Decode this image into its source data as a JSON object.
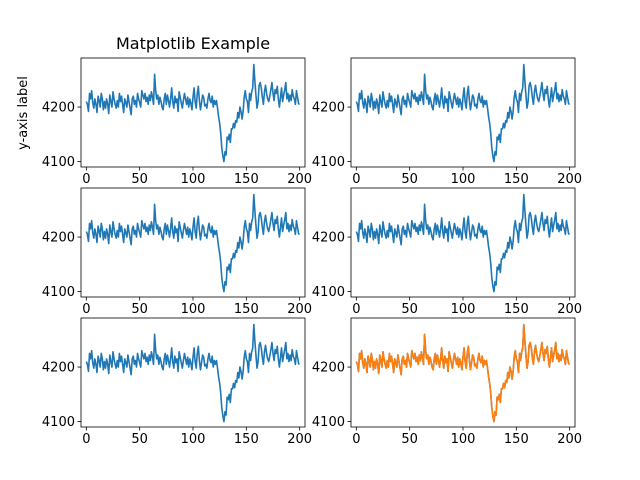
{
  "figure": {
    "title": "Matplotlib Example",
    "ylabel": "y-axis label"
  },
  "colors": {
    "blue": "#1f77b4",
    "orange": "#ff7f0e",
    "axis": "#000000",
    "background": "#ffffff"
  },
  "chart_data": [
    {
      "type": "line",
      "row": 0,
      "col": 0,
      "title": "Matplotlib Example",
      "ylabel": "y-axis label",
      "xlim": [
        -5,
        205
      ],
      "ylim": [
        4090,
        4290
      ],
      "xticks": [
        0,
        50,
        100,
        150,
        200
      ],
      "yticks": [
        4100,
        4200
      ],
      "grid": false,
      "series": [
        {
          "color": "#1f77b4",
          "ref": "signal"
        }
      ]
    },
    {
      "type": "line",
      "row": 0,
      "col": 1,
      "title": "",
      "ylabel": "",
      "xlim": [
        -5,
        205
      ],
      "ylim": [
        4090,
        4290
      ],
      "xticks": [
        0,
        50,
        100,
        150,
        200
      ],
      "yticks": [
        4100,
        4200
      ],
      "grid": false,
      "series": [
        {
          "color": "#1f77b4",
          "ref": "signal"
        }
      ]
    },
    {
      "type": "line",
      "row": 1,
      "col": 0,
      "title": "",
      "ylabel": "",
      "xlim": [
        -5,
        205
      ],
      "ylim": [
        4090,
        4290
      ],
      "xticks": [
        0,
        50,
        100,
        150,
        200
      ],
      "yticks": [
        4100,
        4200
      ],
      "grid": false,
      "series": [
        {
          "color": "#1f77b4",
          "ref": "signal"
        }
      ]
    },
    {
      "type": "line",
      "row": 1,
      "col": 1,
      "title": "",
      "ylabel": "",
      "xlim": [
        -5,
        205
      ],
      "ylim": [
        4090,
        4290
      ],
      "xticks": [
        0,
        50,
        100,
        150,
        200
      ],
      "yticks": [
        4100,
        4200
      ],
      "grid": false,
      "series": [
        {
          "color": "#1f77b4",
          "ref": "signal"
        }
      ]
    },
    {
      "type": "line",
      "row": 2,
      "col": 0,
      "title": "",
      "ylabel": "",
      "xlim": [
        -5,
        205
      ],
      "ylim": [
        4090,
        4290
      ],
      "xticks": [
        0,
        50,
        100,
        150,
        200
      ],
      "yticks": [
        4100,
        4200
      ],
      "grid": false,
      "series": [
        {
          "color": "#1f77b4",
          "ref": "signal"
        }
      ]
    },
    {
      "type": "line",
      "row": 2,
      "col": 1,
      "title": "",
      "ylabel": "",
      "xlim": [
        -5,
        205
      ],
      "ylim": [
        4090,
        4290
      ],
      "xticks": [
        0,
        50,
        100,
        150,
        200
      ],
      "yticks": [
        4100,
        4200
      ],
      "grid": false,
      "series": [
        {
          "color": "#1f77b4",
          "ref": "signal"
        },
        {
          "color": "#ff7f0e",
          "ref": "signal"
        }
      ]
    }
  ],
  "signal": {
    "x_start": 0,
    "x_step": 1,
    "y": [
      4210,
      4205,
      4192,
      4225,
      4215,
      4230,
      4208,
      4198,
      4215,
      4205,
      4190,
      4220,
      4212,
      4200,
      4225,
      4215,
      4195,
      4210,
      4198,
      4215,
      4205,
      4188,
      4222,
      4210,
      4200,
      4228,
      4215,
      4205,
      4198,
      4212,
      4200,
      4225,
      4210,
      4220,
      4205,
      4190,
      4215,
      4208,
      4200,
      4222,
      4210,
      4198,
      4186,
      4215,
      4220,
      4205,
      4212,
      4200,
      4225,
      4215,
      4208,
      4200,
      4230,
      4222,
      4215,
      4225,
      4210,
      4218,
      4205,
      4222,
      4212,
      4228,
      4218,
      4205,
      4260,
      4230,
      4215,
      4222,
      4205,
      4218,
      4210,
      4200,
      4195,
      4215,
      4225,
      4205,
      4222,
      4212,
      4200,
      4215,
      4235,
      4210,
      4198,
      4220,
      4208,
      4215,
      4192,
      4228,
      4218,
      4208,
      4198,
      4212,
      4225,
      4215,
      4205,
      4218,
      4200,
      4215,
      4207,
      4195,
      4218,
      4235,
      4210,
      4198,
      4225,
      4238,
      4212,
      4195,
      4208,
      4222,
      4218,
      4202,
      4205,
      4198,
      4215,
      4225,
      4212,
      4208,
      4220,
      4200,
      4212,
      4205,
      4212,
      4198,
      4182,
      4170,
      4152,
      4125,
      4110,
      4100,
      4118,
      4112,
      4145,
      4140,
      4150,
      4135,
      4160,
      4160,
      4170,
      4162,
      4175,
      4172,
      4190,
      4180,
      4200,
      4192,
      4178,
      4192,
      4218,
      4230,
      4215,
      4210,
      4190,
      4225,
      4212,
      4228,
      4235,
      4278,
      4248,
      4222,
      4198,
      4210,
      4240,
      4245,
      4235,
      4218,
      4205,
      4228,
      4240,
      4225,
      4215,
      4210,
      4220,
      4232,
      4245,
      4225,
      4212,
      4232,
      4225,
      4238,
      4215,
      4200,
      4218,
      4235,
      4210,
      4222,
      4232,
      4245,
      4215,
      4225,
      4210,
      4222,
      4212,
      4232,
      4220,
      4215,
      4205,
      4230,
      4218,
      4206,
      4205
    ]
  }
}
